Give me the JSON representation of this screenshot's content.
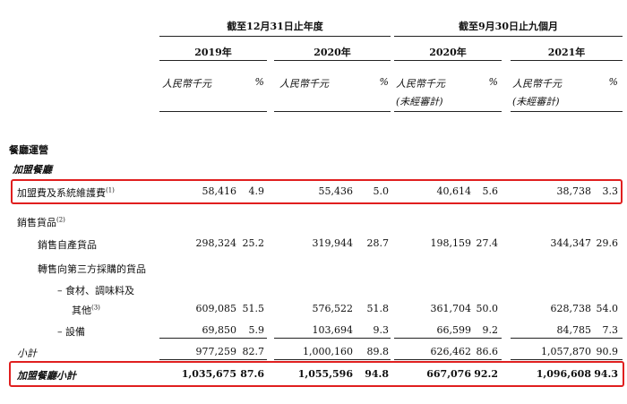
{
  "header": {
    "group_year": "截至12月31日止年度",
    "group_nine": "截至9月30日止九個月",
    "years": [
      "2019年",
      "2020年",
      "2020年",
      "2021年"
    ],
    "unit": "人民幣千元",
    "pct": "%",
    "unaudited": "(未經審計)"
  },
  "section": {
    "title": "餐廳運營",
    "subtitle": "加盟餐廳"
  },
  "rows": {
    "franchise_fee": {
      "label": "加盟費及系統維護費",
      "note": "(1)",
      "values": [
        "58,416",
        "4.9",
        "55,436",
        "5.0",
        "40,614",
        "5.6",
        "38,738",
        "3.3"
      ]
    },
    "goods_sales": {
      "label": "銷售貨品",
      "note": "(2)"
    },
    "self_produced": {
      "label": "銷售自產貨品",
      "values": [
        "298,324",
        "25.2",
        "319,944",
        "28.7",
        "198,159",
        "27.4",
        "344,347",
        "29.6"
      ]
    },
    "resale_header": {
      "label": "轉售向第三方採購的貨品"
    },
    "food_line1": {
      "label": "– 食材、調味料及"
    },
    "food_line2": {
      "label": "其他",
      "note": "(3)",
      "values": [
        "609,085",
        "51.5",
        "576,522",
        "51.8",
        "361,704",
        "50.0",
        "628,738",
        "54.0"
      ]
    },
    "equipment": {
      "label": "– 設備",
      "values": [
        "69,850",
        "5.9",
        "103,694",
        "9.3",
        "66,599",
        "9.2",
        "84,785",
        "7.3"
      ]
    },
    "subtotal": {
      "label": "小計",
      "values": [
        "977,259",
        "82.7",
        "1,000,160",
        "89.8",
        "626,462",
        "86.6",
        "1,057,870",
        "90.9"
      ]
    },
    "franchise_subtotal": {
      "label": "加盟餐廳小計",
      "values": [
        "1,035,675",
        "87.6",
        "1,055,596",
        "94.8",
        "667,076",
        "92.2",
        "1,096,608",
        "94.3"
      ]
    }
  },
  "colors": {
    "highlight": "#e01f1f",
    "text": "#111111"
  }
}
